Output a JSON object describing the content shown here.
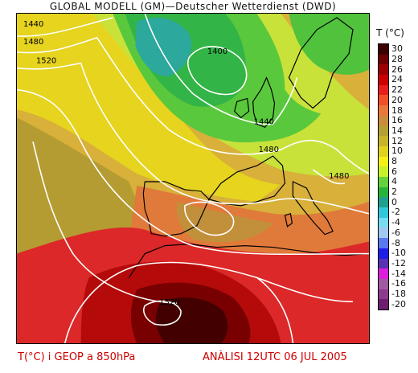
{
  "title": "GLOBAL MODELL (GM)—Deutscher Wetterdienst (DWD)",
  "colorbar": {
    "title": "T (°C)",
    "levels": [
      "30",
      "28",
      "26",
      "24",
      "22",
      "20",
      "18",
      "16",
      "14",
      "12",
      "10",
      "8",
      "6",
      "4",
      "2",
      "0",
      "-2",
      "-4",
      "-6",
      "-8",
      "-10",
      "-12",
      "-14",
      "-16",
      "-18",
      "-20"
    ],
    "colors": [
      "#3a0000",
      "#6e0000",
      "#9c0000",
      "#cc0000",
      "#e61e1e",
      "#f05028",
      "#e8783c",
      "#c88c3c",
      "#b4a032",
      "#c8b428",
      "#e1d21e",
      "#f5f014",
      "#c8f028",
      "#64d23c",
      "#28b43c",
      "#1ea08c",
      "#32c8dc",
      "#78dcf0",
      "#a0c8f0",
      "#5a78f0",
      "#1e1ee6",
      "#5a32b4",
      "#dc1edc",
      "#a05aa0",
      "#8c3c8c",
      "#6e1e6e"
    ]
  },
  "map": {
    "background": "#d8b03a",
    "coastline_color": "#000000",
    "isohypse_color": "#ffffff",
    "isohypse_labels": [
      {
        "text": "1440"
      },
      {
        "text": "1480"
      },
      {
        "text": "1520"
      },
      {
        "text": "1400"
      },
      {
        "text": "1440"
      },
      {
        "text": "1480"
      },
      {
        "text": "1480"
      },
      {
        "text": "1520"
      }
    ]
  },
  "footer": {
    "left": "T(°C) i GEOP a 850hPa",
    "right": "ANÀLISI 12UTC 06 JUL 2005"
  }
}
